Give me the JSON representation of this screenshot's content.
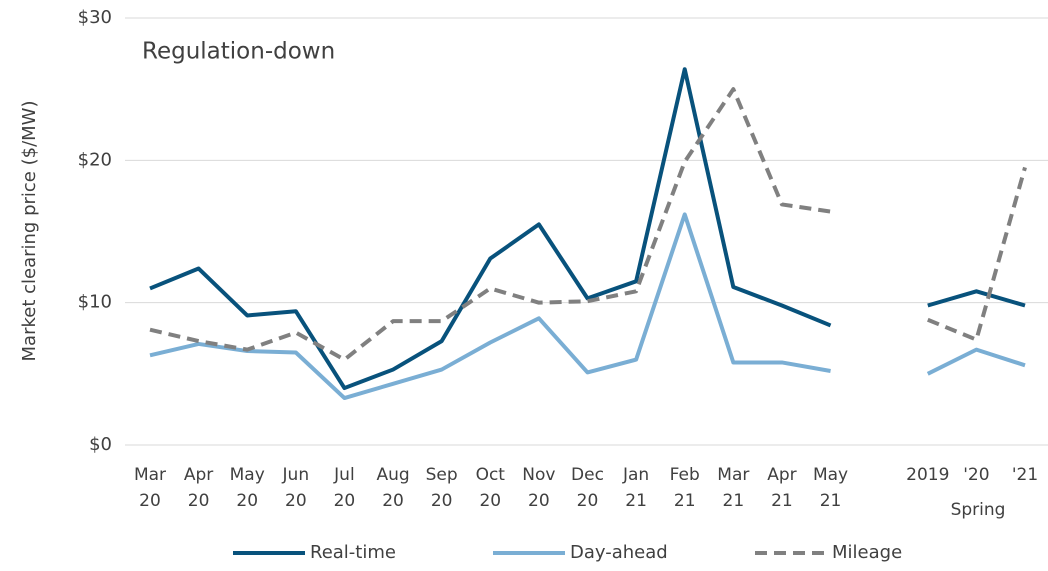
{
  "chart_data": {
    "type": "line",
    "title": "Regulation-down",
    "y_label": "Market clearing price ($/MW)",
    "categories": [
      "Mar 20",
      "Apr 20",
      "May 20",
      "Jun 20",
      "Jul 20",
      "Aug 20",
      "Sep 20",
      "Oct 20",
      "Nov 20",
      "Dec 20",
      "Jan 21",
      "Feb 21",
      "Mar 21",
      "Apr 21",
      "May 21",
      null,
      "2019",
      "'20",
      "'21"
    ],
    "group_label": "Spring",
    "series": [
      {
        "name": "Real-time",
        "color": "#08527c",
        "dash": false,
        "values": [
          11.0,
          12.4,
          9.1,
          9.4,
          4.0,
          5.3,
          7.3,
          13.1,
          15.5,
          10.3,
          11.5,
          26.4,
          11.1,
          9.8,
          8.4,
          null,
          9.8,
          10.8,
          9.8
        ]
      },
      {
        "name": "Day-ahead",
        "color": "#7aaed4",
        "dash": false,
        "values": [
          6.3,
          7.1,
          6.6,
          6.5,
          3.3,
          4.3,
          5.3,
          7.2,
          8.9,
          5.1,
          6.0,
          16.2,
          5.8,
          5.8,
          5.2,
          null,
          5.0,
          6.7,
          5.6
        ]
      },
      {
        "name": "Mileage",
        "color": "#808080",
        "dash": true,
        "values": [
          8.1,
          7.3,
          6.7,
          7.9,
          6.0,
          8.7,
          8.7,
          11.0,
          10.0,
          10.1,
          10.8,
          19.9,
          25.0,
          16.9,
          16.4,
          null,
          8.8,
          7.4,
          19.5
        ]
      }
    ],
    "ylim": [
      0,
      30
    ],
    "yticks": [
      {
        "value": 0,
        "label": "$0"
      },
      {
        "value": 10,
        "label": "$10"
      },
      {
        "value": 20,
        "label": "$20"
      },
      {
        "value": 30,
        "label": "$30"
      }
    ],
    "grid": true,
    "legend": "bottom"
  }
}
